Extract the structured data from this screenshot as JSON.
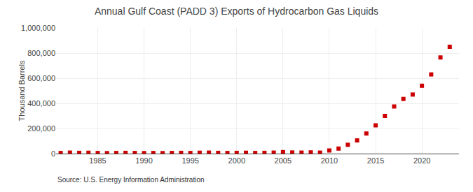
{
  "chart_data": {
    "type": "scatter",
    "title": "Annual Gulf Coast (PADD 3) Exports of Hydrocarbon Gas Liquids",
    "ylabel": "Thousand Barrels",
    "annotations": [
      "Source: U.S. Energy Information Administration"
    ],
    "color": "#cc0000",
    "marker": "square",
    "x": [
      1981,
      1982,
      1983,
      1984,
      1985,
      1986,
      1987,
      1988,
      1989,
      1990,
      1991,
      1992,
      1993,
      1994,
      1995,
      1996,
      1997,
      1998,
      1999,
      2000,
      2001,
      2002,
      2003,
      2004,
      2005,
      2006,
      2007,
      2008,
      2009,
      2010,
      2011,
      2012,
      2013,
      2014,
      2015,
      2016,
      2017,
      2018,
      2019,
      2020,
      2021,
      2022,
      2023
    ],
    "values": [
      5000,
      8000,
      6000,
      7000,
      5000,
      4000,
      5000,
      6000,
      5000,
      4000,
      5000,
      4000,
      5000,
      6000,
      5000,
      7000,
      8000,
      6000,
      5000,
      6000,
      7000,
      5000,
      6000,
      8000,
      12000,
      9000,
      8000,
      10000,
      8000,
      25000,
      40000,
      70000,
      105000,
      160000,
      225000,
      300000,
      375000,
      435000,
      470000,
      540000,
      630000,
      765000,
      850000
    ],
    "xlim": [
      1980.5,
      2024
    ],
    "xticks": [
      1985,
      1990,
      1995,
      2000,
      2005,
      2010,
      2015,
      2020
    ],
    "ylim": [
      0,
      1000000
    ],
    "yticks": [
      0,
      {
        "value": 200000,
        "label": "200,000"
      },
      {
        "value": 400000,
        "label": "400,000"
      },
      {
        "value": 600000,
        "label": "600,000"
      },
      {
        "value": 800000,
        "label": "800,000"
      },
      {
        "value": 1000000,
        "label": "1,000,000"
      }
    ],
    "grid": true
  }
}
